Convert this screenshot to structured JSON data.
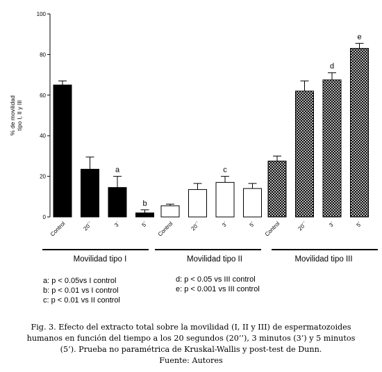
{
  "chart_data": {
    "type": "bar",
    "ylabel_line1": "% de movilidad",
    "ylabel_line2": "tipo I, II y III",
    "ylim": [
      0,
      100
    ],
    "yticks": [
      0,
      20,
      40,
      60,
      80,
      100
    ],
    "groups": [
      {
        "label": "Movilidad tipo  I",
        "fill": "#000000",
        "pattern": "solid",
        "categories": [
          "Control",
          "20´´",
          "3´",
          "5´"
        ],
        "values": [
          65,
          23.5,
          14.5,
          2
        ],
        "errors": [
          2,
          6,
          5.5,
          1.5
        ],
        "annotations": [
          "",
          "",
          "a",
          "b"
        ]
      },
      {
        "label": "Movilidad tipo  II",
        "fill": "#ffffff",
        "pattern": "open",
        "categories": [
          "Control",
          "20´´",
          "3´",
          "5´"
        ],
        "values": [
          5.5,
          13.5,
          17,
          14
        ],
        "errors": [
          0.8,
          3,
          3,
          2.5
        ],
        "annotations": [
          "",
          "",
          "c",
          ""
        ]
      },
      {
        "label": "Movilidad tipo  III",
        "fill": "#000000",
        "pattern": "crosshatch",
        "categories": [
          "Control",
          "20´´",
          "3´",
          "5´"
        ],
        "values": [
          27.5,
          62,
          67.5,
          83
        ],
        "errors": [
          2.5,
          5,
          3.5,
          2.5
        ],
        "annotations": [
          "",
          "",
          "d",
          "e"
        ]
      }
    ]
  },
  "notes": {
    "left": [
      "a: p < 0.05vs  I control",
      "b: p < 0.01 vs I control",
      "c: p < 0.01 vs II control"
    ],
    "right": [
      "d: p < 0.05 vs III control",
      "e: p < 0.001 vs III control"
    ]
  },
  "caption": {
    "lines": [
      "Fig. 3. Efecto del extracto total sobre la movilidad (I, II y III) de espermatozoides",
      "humanos en función del tiempo a los 20 segundos (20’’), 3 minutos (3’) y 5 minutos",
      "(5’). Prueba no paramétrica de Kruskal-Wallis y post-test de Dunn.",
      "Fuente: Autores"
    ]
  }
}
